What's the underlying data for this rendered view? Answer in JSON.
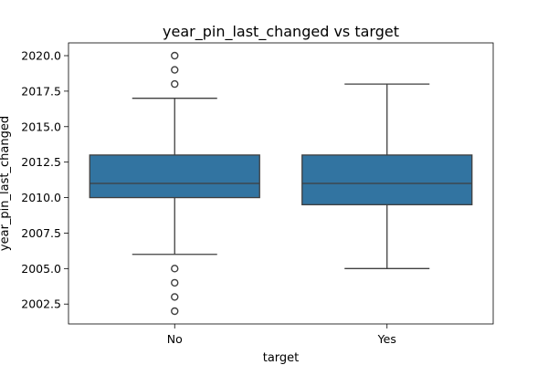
{
  "chart_data": {
    "type": "box",
    "title": "year_pin_last_changed vs target",
    "xlabel": "target",
    "ylabel": "year_pin_last_changed",
    "ylim": [
      2001.1,
      2020.9
    ],
    "yticks": [
      2002.5,
      2005.0,
      2007.5,
      2010.0,
      2012.5,
      2015.0,
      2017.5,
      2020.0
    ],
    "ytick_labels": [
      "2002.5",
      "2005.0",
      "2007.5",
      "2010.0",
      "2012.5",
      "2015.0",
      "2017.5",
      "2020.0"
    ],
    "categories": [
      "No",
      "Yes"
    ],
    "boxes": [
      {
        "category": "No",
        "whisker_low": 2006,
        "q1": 2010,
        "median": 2011,
        "q3": 2013,
        "whisker_high": 2017,
        "outliers": [
          2002,
          2003,
          2004,
          2005,
          2018,
          2019,
          2020
        ]
      },
      {
        "category": "Yes",
        "whisker_low": 2005,
        "q1": 2009.5,
        "median": 2011,
        "q3": 2013,
        "whisker_high": 2018,
        "outliers": []
      }
    ],
    "grid": false,
    "box_color": "#3274a1"
  }
}
